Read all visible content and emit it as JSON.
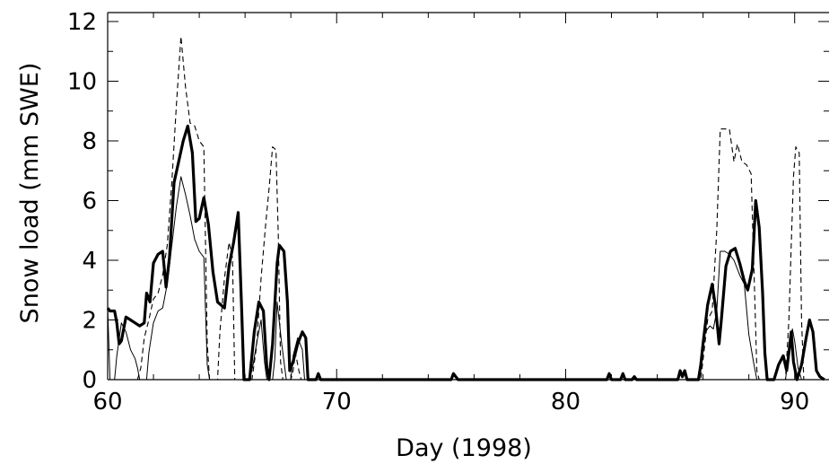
{
  "chart_data": {
    "type": "line",
    "title": "",
    "xlabel": "Day (1998)",
    "ylabel": "Snow load (mm SWE)",
    "xlim": [
      60,
      91.5
    ],
    "ylim": [
      0,
      12.3
    ],
    "x_ticks": [
      60,
      70,
      80,
      90
    ],
    "x_tick_labels": [
      "60",
      "70",
      "80",
      "90"
    ],
    "y_ticks": [
      0,
      2,
      4,
      6,
      8,
      10,
      12
    ],
    "y_tick_labels": [
      "0",
      "2",
      "4",
      "6",
      "8",
      "10",
      "12"
    ],
    "legend": "none",
    "grid": false,
    "series": [
      {
        "line_style": "thick solid",
        "color": "#000000",
        "points": [
          [
            60.0,
            2.4
          ],
          [
            60.1,
            2.3
          ],
          [
            60.3,
            2.3
          ],
          [
            60.4,
            1.9
          ],
          [
            60.5,
            1.2
          ],
          [
            60.6,
            1.3
          ],
          [
            60.8,
            2.1
          ],
          [
            61.0,
            2.0
          ],
          [
            61.2,
            1.9
          ],
          [
            61.4,
            1.8
          ],
          [
            61.6,
            1.9
          ],
          [
            61.7,
            2.9
          ],
          [
            61.85,
            2.6
          ],
          [
            62.0,
            3.9
          ],
          [
            62.2,
            4.2
          ],
          [
            62.4,
            4.3
          ],
          [
            62.55,
            3.1
          ],
          [
            62.7,
            4.1
          ],
          [
            62.9,
            6.6
          ],
          [
            63.1,
            7.3
          ],
          [
            63.3,
            8.0
          ],
          [
            63.5,
            8.5
          ],
          [
            63.7,
            7.6
          ],
          [
            63.85,
            5.3
          ],
          [
            64.0,
            5.4
          ],
          [
            64.2,
            6.1
          ],
          [
            64.4,
            5.2
          ],
          [
            64.6,
            3.6
          ],
          [
            64.8,
            2.6
          ],
          [
            65.1,
            2.4
          ],
          [
            65.3,
            3.8
          ],
          [
            65.5,
            4.6
          ],
          [
            65.7,
            5.6
          ],
          [
            65.85,
            2.4
          ],
          [
            65.95,
            0.0
          ],
          [
            66.2,
            0.0
          ],
          [
            66.4,
            1.6
          ],
          [
            66.6,
            2.6
          ],
          [
            66.8,
            2.3
          ],
          [
            66.95,
            0.4
          ],
          [
            67.05,
            0.0
          ],
          [
            67.2,
            1.2
          ],
          [
            67.4,
            3.9
          ],
          [
            67.5,
            4.5
          ],
          [
            67.7,
            4.3
          ],
          [
            67.85,
            2.6
          ],
          [
            67.95,
            0.3
          ],
          [
            68.1,
            0.6
          ],
          [
            68.3,
            1.2
          ],
          [
            68.5,
            1.6
          ],
          [
            68.65,
            1.4
          ],
          [
            68.75,
            0.0
          ],
          [
            69.1,
            0.0
          ],
          [
            69.2,
            0.2
          ],
          [
            69.3,
            0.0
          ],
          [
            75.0,
            0.0
          ],
          [
            75.1,
            0.2
          ],
          [
            75.2,
            0.1
          ],
          [
            75.3,
            0.0
          ],
          [
            81.8,
            0.0
          ],
          [
            81.9,
            0.2
          ],
          [
            82.0,
            0.0
          ],
          [
            82.4,
            0.0
          ],
          [
            82.5,
            0.2
          ],
          [
            82.6,
            0.0
          ],
          [
            82.9,
            0.0
          ],
          [
            83.0,
            0.1
          ],
          [
            83.1,
            0.0
          ],
          [
            84.9,
            0.0
          ],
          [
            85.0,
            0.3
          ],
          [
            85.1,
            0.1
          ],
          [
            85.2,
            0.3
          ],
          [
            85.3,
            0.0
          ],
          [
            85.8,
            0.0
          ],
          [
            85.9,
            0.5
          ],
          [
            86.0,
            1.2
          ],
          [
            86.2,
            2.5
          ],
          [
            86.4,
            3.2
          ],
          [
            86.55,
            2.4
          ],
          [
            86.7,
            1.2
          ],
          [
            86.8,
            2.0
          ],
          [
            87.0,
            3.8
          ],
          [
            87.2,
            4.3
          ],
          [
            87.4,
            4.4
          ],
          [
            87.6,
            3.9
          ],
          [
            87.8,
            3.3
          ],
          [
            87.95,
            3.0
          ],
          [
            88.15,
            3.7
          ],
          [
            88.3,
            6.0
          ],
          [
            88.45,
            5.1
          ],
          [
            88.6,
            2.9
          ],
          [
            88.7,
            0.9
          ],
          [
            88.8,
            0.0
          ],
          [
            89.1,
            0.0
          ],
          [
            89.3,
            0.5
          ],
          [
            89.5,
            0.8
          ],
          [
            89.65,
            0.3
          ],
          [
            89.75,
            0.9
          ],
          [
            89.85,
            1.6
          ],
          [
            89.95,
            0.6
          ],
          [
            90.1,
            0.0
          ],
          [
            90.3,
            0.5
          ],
          [
            90.5,
            1.4
          ],
          [
            90.65,
            2.0
          ],
          [
            90.8,
            1.6
          ],
          [
            90.95,
            0.3
          ],
          [
            91.1,
            0.1
          ],
          [
            91.3,
            0.0
          ]
        ]
      },
      {
        "line_style": "dashed",
        "color": "#000000",
        "points": [
          [
            61.3,
            0.0
          ],
          [
            61.45,
            0.4
          ],
          [
            61.6,
            1.4
          ],
          [
            61.8,
            2.0
          ],
          [
            62.0,
            2.7
          ],
          [
            62.2,
            2.9
          ],
          [
            62.4,
            3.5
          ],
          [
            62.6,
            4.5
          ],
          [
            62.8,
            6.6
          ],
          [
            63.0,
            9.2
          ],
          [
            63.2,
            11.5
          ],
          [
            63.4,
            9.8
          ],
          [
            63.6,
            8.6
          ],
          [
            63.8,
            8.5
          ],
          [
            64.0,
            8.0
          ],
          [
            64.2,
            7.8
          ],
          [
            64.35,
            1.2
          ],
          [
            64.45,
            0.0
          ],
          [
            64.8,
            0.0
          ],
          [
            64.9,
            1.6
          ],
          [
            65.1,
            3.4
          ],
          [
            65.3,
            4.6
          ],
          [
            65.45,
            4.1
          ],
          [
            65.55,
            0.0
          ],
          [
            66.3,
            0.0
          ],
          [
            66.5,
            1.1
          ],
          [
            66.7,
            3.4
          ],
          [
            66.9,
            5.2
          ],
          [
            67.05,
            6.4
          ],
          [
            67.2,
            7.8
          ],
          [
            67.35,
            7.7
          ],
          [
            67.45,
            4.8
          ],
          [
            67.55,
            0.6
          ],
          [
            67.65,
            0.0
          ],
          [
            68.0,
            0.0
          ],
          [
            68.1,
            0.3
          ],
          [
            68.2,
            0.9
          ],
          [
            68.35,
            0.3
          ],
          [
            68.45,
            0.0
          ],
          [
            85.9,
            0.0
          ],
          [
            86.05,
            1.0
          ],
          [
            86.2,
            2.0
          ],
          [
            86.4,
            2.3
          ],
          [
            86.6,
            5.0
          ],
          [
            86.75,
            8.4
          ],
          [
            86.95,
            8.4
          ],
          [
            87.15,
            8.4
          ],
          [
            87.35,
            7.3
          ],
          [
            87.5,
            7.9
          ],
          [
            87.7,
            7.3
          ],
          [
            87.9,
            7.2
          ],
          [
            88.1,
            6.9
          ],
          [
            88.25,
            3.0
          ],
          [
            88.35,
            0.3
          ],
          [
            88.45,
            0.0
          ],
          [
            89.6,
            0.0
          ],
          [
            89.75,
            2.0
          ],
          [
            89.85,
            4.5
          ],
          [
            89.95,
            6.8
          ],
          [
            90.05,
            7.8
          ],
          [
            90.2,
            7.6
          ],
          [
            90.3,
            2.0
          ],
          [
            90.4,
            0.0
          ]
        ]
      },
      {
        "line_style": "thin solid",
        "color": "#000000",
        "points": [
          [
            60.0,
            2.4
          ],
          [
            60.1,
            0.0
          ],
          [
            60.3,
            0.0
          ],
          [
            60.4,
            0.8
          ],
          [
            60.6,
            1.9
          ],
          [
            60.8,
            1.6
          ],
          [
            61.0,
            1.0
          ],
          [
            61.2,
            0.7
          ],
          [
            61.3,
            0.4
          ],
          [
            61.4,
            0.0
          ],
          [
            61.7,
            0.0
          ],
          [
            61.8,
            0.9
          ],
          [
            62.0,
            1.9
          ],
          [
            62.2,
            2.3
          ],
          [
            62.4,
            2.4
          ],
          [
            62.6,
            3.2
          ],
          [
            62.8,
            4.5
          ],
          [
            63.0,
            5.8
          ],
          [
            63.2,
            6.8
          ],
          [
            63.4,
            6.2
          ],
          [
            63.6,
            5.5
          ],
          [
            63.8,
            4.7
          ],
          [
            64.0,
            4.3
          ],
          [
            64.2,
            4.1
          ],
          [
            64.35,
            0.5
          ],
          [
            64.45,
            0.0
          ],
          [
            66.2,
            0.0
          ],
          [
            66.35,
            0.5
          ],
          [
            66.5,
            1.2
          ],
          [
            66.7,
            2.0
          ],
          [
            66.85,
            0.6
          ],
          [
            66.95,
            0.0
          ],
          [
            67.2,
            0.0
          ],
          [
            67.3,
            0.7
          ],
          [
            67.4,
            2.6
          ],
          [
            67.6,
            1.2
          ],
          [
            67.8,
            0.0
          ],
          [
            68.0,
            0.0
          ],
          [
            68.1,
            0.8
          ],
          [
            68.3,
            1.4
          ],
          [
            68.5,
            1.0
          ],
          [
            68.6,
            0.0
          ],
          [
            85.8,
            0.0
          ],
          [
            85.9,
            0.6
          ],
          [
            86.1,
            1.6
          ],
          [
            86.3,
            1.8
          ],
          [
            86.45,
            1.7
          ],
          [
            86.6,
            2.3
          ],
          [
            86.75,
            4.3
          ],
          [
            86.95,
            4.3
          ],
          [
            87.15,
            4.2
          ],
          [
            87.35,
            4.0
          ],
          [
            87.6,
            3.5
          ],
          [
            87.8,
            3.2
          ],
          [
            88.0,
            1.5
          ],
          [
            88.2,
            0.6
          ],
          [
            88.35,
            0.0
          ],
          [
            89.6,
            0.0
          ],
          [
            89.75,
            0.9
          ],
          [
            89.9,
            1.7
          ],
          [
            90.0,
            1.3
          ],
          [
            90.15,
            0.4
          ],
          [
            90.3,
            0.0
          ]
        ]
      }
    ]
  }
}
